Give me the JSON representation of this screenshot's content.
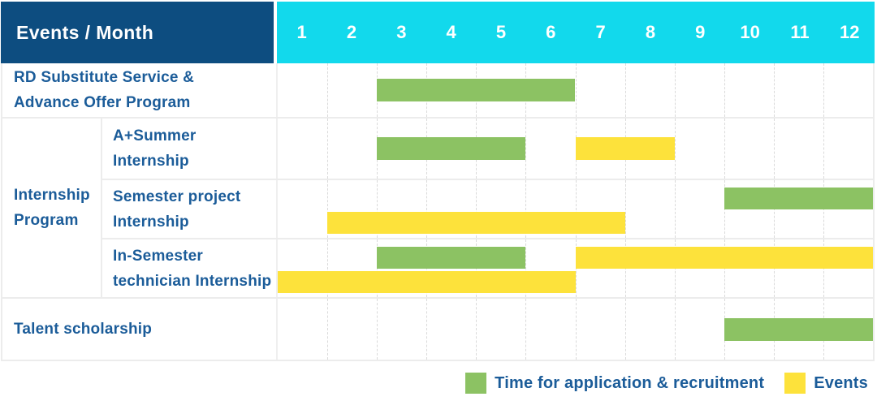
{
  "header": {
    "title": "Events / Month",
    "months": [
      "1",
      "2",
      "3",
      "4",
      "5",
      "6",
      "7",
      "8",
      "9",
      "10",
      "11",
      "12"
    ]
  },
  "colors": {
    "header_bg": "#0d4d80",
    "months_bg": "#12d9ec",
    "application": "#8cc263",
    "events": "#fde23b",
    "label_text": "#1b5c99"
  },
  "table": {
    "rows": [
      {
        "group": "",
        "label_lines": [
          "RD Substitute Service &",
          "Advance Offer Program"
        ],
        "lanes": 1
      },
      {
        "group": "Internship Program",
        "group_label_lines": [
          "Internship",
          "Program"
        ],
        "label_lines": [
          "A+Summer",
          "Internship"
        ],
        "lanes": 1
      },
      {
        "group": "Internship Program",
        "label_lines": [
          "Semester project",
          "Internship"
        ],
        "lanes": 2
      },
      {
        "group": "Internship Program",
        "label_lines": [
          "In-Semester",
          "technician Internship"
        ],
        "lanes": 2
      },
      {
        "group": "",
        "label_lines": [
          "Talent scholarship"
        ],
        "lanes": 1
      }
    ]
  },
  "legend": {
    "items": [
      {
        "kind": "application",
        "label": "Time for application & recruitment"
      },
      {
        "kind": "events",
        "label": "Events"
      }
    ]
  },
  "chart_data": {
    "type": "table",
    "subtype": "gantt-schedule",
    "corner_header": "Events / Month",
    "x_label": "Month",
    "x_ticks": [
      1,
      2,
      3,
      4,
      5,
      6,
      7,
      8,
      9,
      10,
      11,
      12
    ],
    "legend": {
      "application": "Time for application & recruitment",
      "events": "Events"
    },
    "tasks": [
      {
        "group": "",
        "name": "RD Substitute Service & Advance Offer Program",
        "bars": [
          {
            "kind": "application",
            "start_month": 3,
            "end_month": 6,
            "lane": 0
          }
        ]
      },
      {
        "group": "Internship Program",
        "name": "A+Summer Internship",
        "bars": [
          {
            "kind": "application",
            "start_month": 3,
            "end_month": 5,
            "lane": 0
          },
          {
            "kind": "events",
            "start_month": 7,
            "end_month": 8,
            "lane": 0
          }
        ]
      },
      {
        "group": "Internship Program",
        "name": "Semester project Internship",
        "bars": [
          {
            "kind": "application",
            "start_month": 10,
            "end_month": 12,
            "lane": 0
          },
          {
            "kind": "events",
            "start_month": 2,
            "end_month": 7,
            "lane": 1
          }
        ]
      },
      {
        "group": "Internship Program",
        "name": "In-Semester technician Internship",
        "bars": [
          {
            "kind": "application",
            "start_month": 3,
            "end_month": 5,
            "lane": 0
          },
          {
            "kind": "events",
            "start_month": 7,
            "end_month": 12,
            "lane": 0
          },
          {
            "kind": "events",
            "start_month": 1,
            "end_month": 6,
            "lane": 1
          }
        ]
      },
      {
        "group": "",
        "name": "Talent scholarship",
        "bars": [
          {
            "kind": "application",
            "start_month": 10,
            "end_month": 12,
            "lane": 0
          }
        ]
      }
    ]
  }
}
